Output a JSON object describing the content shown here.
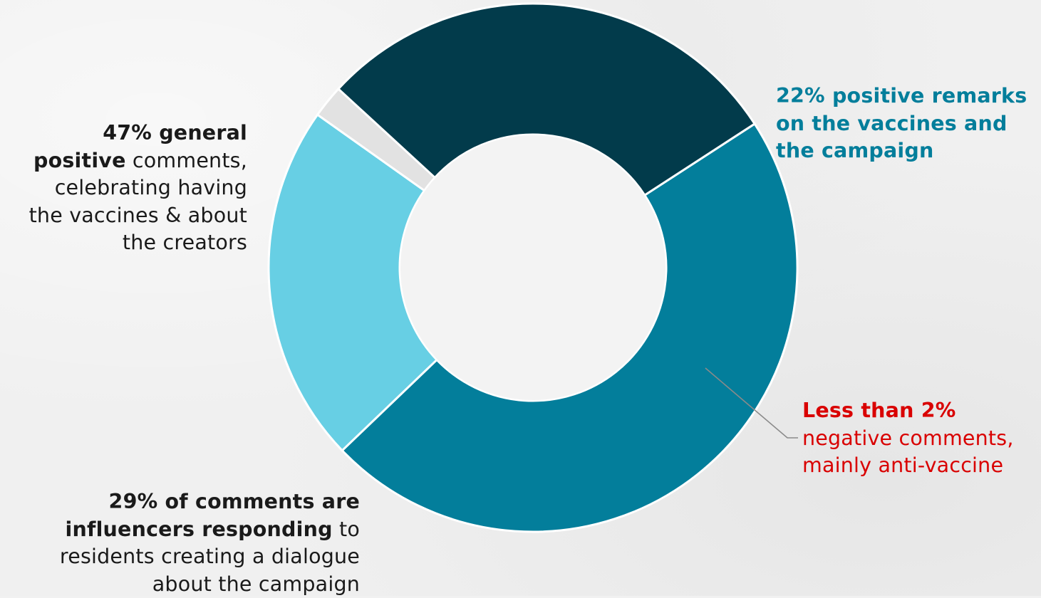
{
  "chart_data": {
    "type": "pie",
    "donut": true,
    "slices": [
      {
        "label": "general positive comments",
        "value": 47,
        "color": "#037e9b"
      },
      {
        "label": "positive remarks on the vaccines and the campaign",
        "value": 22,
        "color": "#67cfe4"
      },
      {
        "label": "negative comments",
        "value": 2,
        "color": "#e2e2e2"
      },
      {
        "label": "influencers responding",
        "value": 29,
        "color": "#023b4b"
      }
    ],
    "annotations": {
      "general": {
        "bold_1": "47% general",
        "bold_2": "positive",
        "rest_2": " comments,",
        "line_3": "celebrating having",
        "line_4": "the vaccines & about",
        "line_5": "the creators"
      },
      "influencers": {
        "bold_1": "29% of comments are",
        "bold_2": "influencers responding",
        "rest_2": " to",
        "line_3": "residents creating a dialogue",
        "line_4": "about the campaign"
      },
      "remarks": {
        "line_1": "22% positive remarks",
        "line_2": "on the vaccines and",
        "line_3": "the campaign",
        "color": "#037e9b"
      },
      "negative": {
        "bold_1": "Less than 2%",
        "line_2": "negative comments,",
        "line_3": "mainly anti-vaccine",
        "color": "#d90000"
      }
    }
  }
}
